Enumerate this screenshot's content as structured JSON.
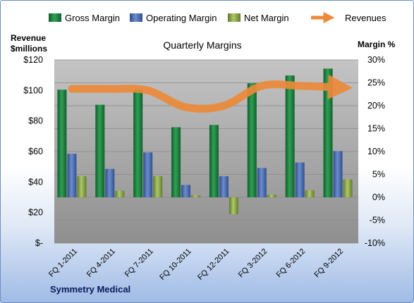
{
  "chart_data": {
    "type": "bar",
    "title": "Quarterly Margins",
    "company": "Symmetry Medical",
    "y_left_label": [
      "Revenue",
      "$millions"
    ],
    "y_right_label": "Margin %",
    "y_left_ticks": [
      "$120",
      "$100",
      "$80",
      "$60",
      "$40",
      "$20",
      "$-"
    ],
    "y_right_ticks": [
      "30%",
      "25%",
      "20%",
      "15%",
      "10%",
      "5%",
      "0%",
      "-5%",
      "-10%"
    ],
    "y_left_lim": [
      0,
      120
    ],
    "y_right_lim": [
      -10,
      30
    ],
    "categories": [
      "FQ 1-2011",
      "FQ 4-2011",
      "FQ 7-2011",
      "FQ 10-2011",
      "FQ 12-2011",
      "FQ 3-2012",
      "FQ 6-2012",
      "FQ 9-2012"
    ],
    "series": [
      {
        "name": "Gross Margin",
        "axis": "right",
        "color": "#1e8c3f",
        "values": [
          23.5,
          20.2,
          23.5,
          15.3,
          15.8,
          24.9,
          26.6,
          28.1
        ]
      },
      {
        "name": "Operating Margin",
        "axis": "right",
        "color": "#4f72b8",
        "values": [
          9.5,
          6.2,
          9.8,
          2.7,
          4.6,
          6.4,
          7.6,
          10.1
        ]
      },
      {
        "name": "Net Margin",
        "axis": "right",
        "color": "#8dae4a",
        "values": [
          4.6,
          1.4,
          4.6,
          0.4,
          -3.7,
          0.6,
          1.5,
          3.9
        ]
      },
      {
        "name": "Revenues",
        "axis": "left",
        "type": "line",
        "color": "#ec8a3a",
        "values": [
          101,
          101,
          100,
          89,
          90,
          103,
          103,
          102
        ]
      }
    ],
    "legend_position": "top",
    "grid": true
  }
}
